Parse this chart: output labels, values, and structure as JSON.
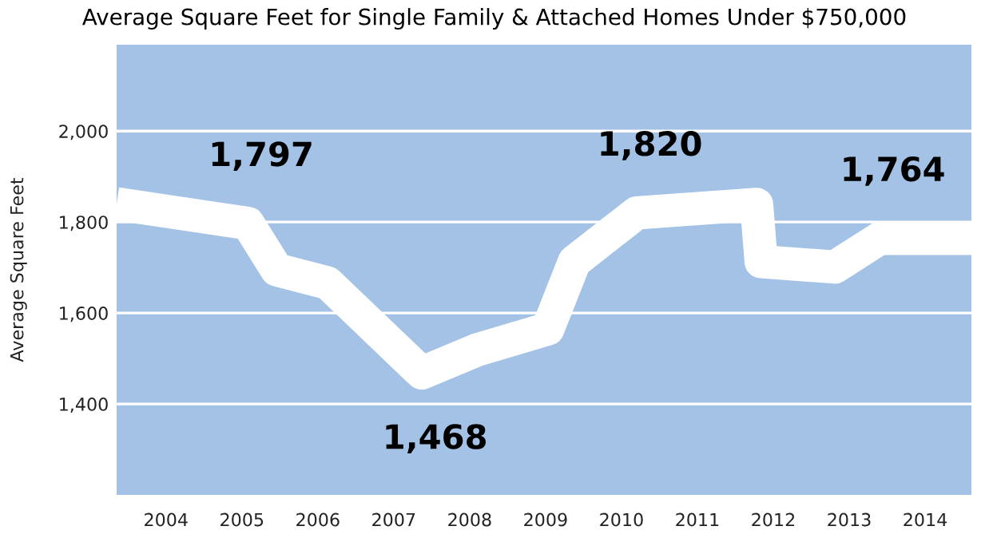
{
  "chart_data": {
    "type": "line",
    "title": "Average Square Feet for Single Family & Attached Homes Under $750,000",
    "ylabel": "Average Square Feet",
    "series": [
      {
        "color": "#ffffff",
        "x": [
          2003.35,
          2005.08,
          2005.46,
          2006.13,
          2007.37,
          2008.1,
          2009.03,
          2009.38,
          2010.2,
          2011.78,
          2011.84,
          2012.81,
          2013.4,
          2014.61
        ],
        "values": [
          1840,
          1797,
          1695,
          1666,
          1468,
          1519,
          1565,
          1713,
          1820,
          1839,
          1713,
          1701,
          1764,
          1764
        ],
        "value_labels": [
          null,
          "1,797",
          null,
          null,
          "1,468",
          null,
          null,
          null,
          "1,820",
          null,
          null,
          null,
          "1,764",
          null
        ]
      }
    ],
    "xlim": [
      2003.35,
      2014.61
    ],
    "xticks": [
      2004,
      2005,
      2006,
      2007,
      2008,
      2009,
      2010,
      2011,
      2012,
      2013,
      2014
    ],
    "ylim": [
      1200,
      2190
    ],
    "yticks": [
      {
        "value": 1400,
        "label": "1,400"
      },
      {
        "value": 1600,
        "label": "1,600"
      },
      {
        "value": 1800,
        "label": "1,800"
      },
      {
        "value": 2000,
        "label": "2,000"
      }
    ],
    "grid": "y",
    "line_style": "solid",
    "marker": "none"
  }
}
